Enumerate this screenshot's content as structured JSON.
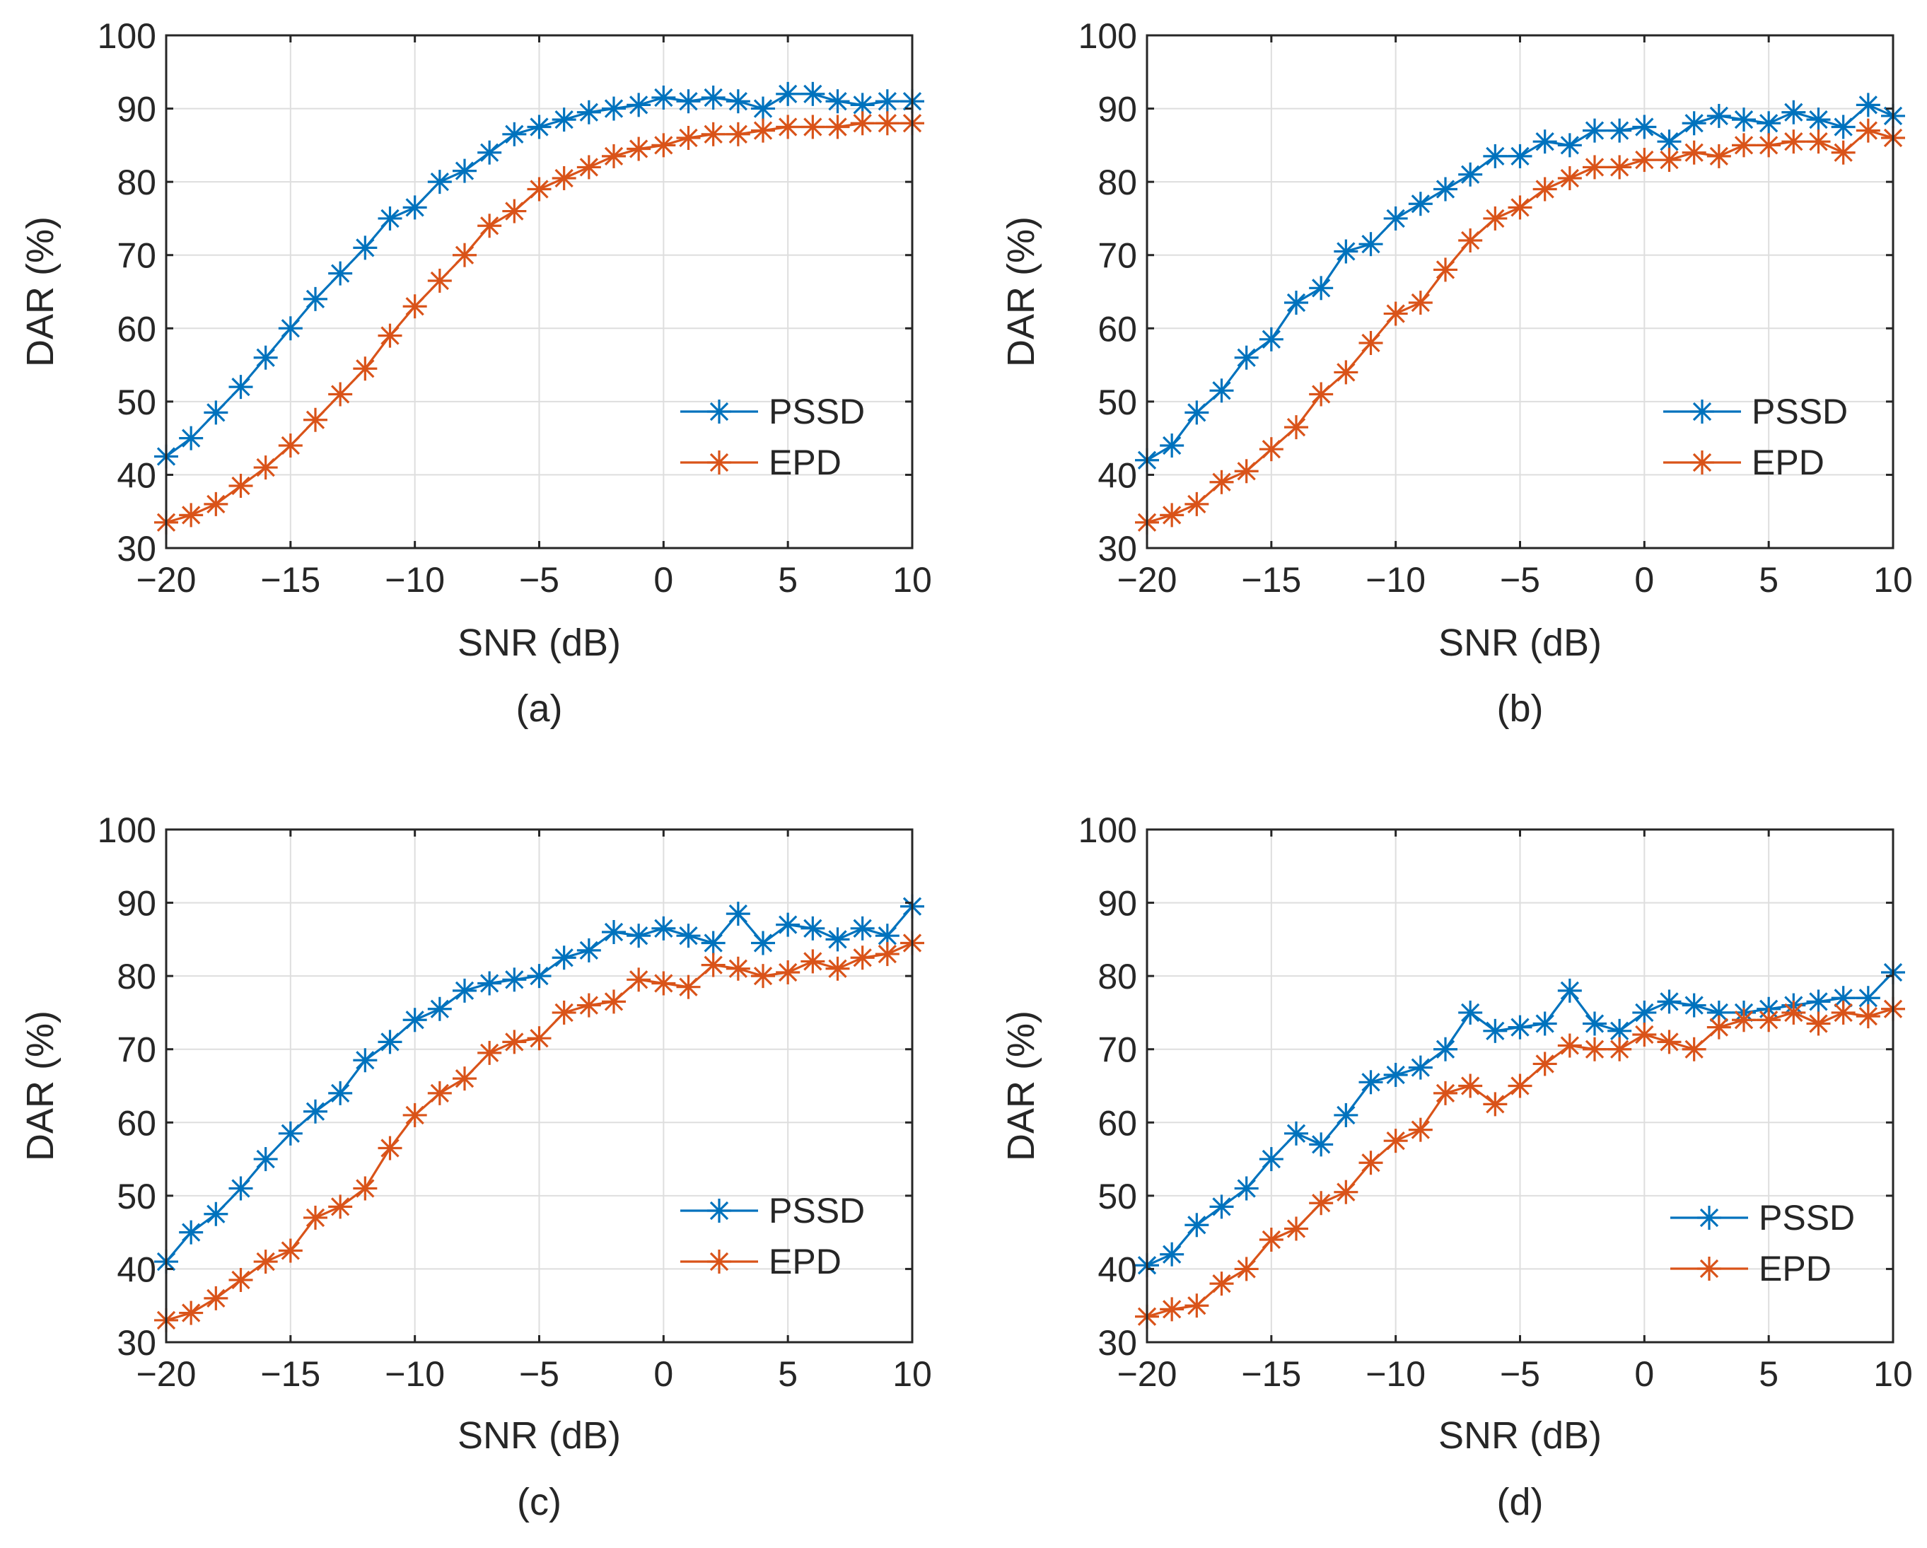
{
  "colors": {
    "PSSD": "#0072BD",
    "EPD": "#D95319",
    "axis": "#262626",
    "grid": "#dedede"
  },
  "chart_data": [
    {
      "type": "line",
      "panel": "a",
      "caption": "(a)",
      "xlabel": "SNR (dB)",
      "ylabel": "DAR (%)",
      "xlim": [
        -20,
        10
      ],
      "ylim": [
        30,
        100
      ],
      "xticks": [
        -20,
        -15,
        -10,
        -5,
        0,
        5,
        10
      ],
      "xtick_labels": [
        "−20",
        "−15",
        "−10",
        "−5",
        "0",
        "5",
        "10"
      ],
      "yticks": [
        30,
        40,
        50,
        60,
        70,
        80,
        90,
        100
      ],
      "ytick_labels": [
        "30",
        "40",
        "50",
        "60",
        "70",
        "80",
        "90",
        "100"
      ],
      "grid": true,
      "legend_position": "bottom-right",
      "x": [
        -20,
        -19,
        -18,
        -17,
        -16,
        -15,
        -14,
        -13,
        -12,
        -11,
        -10,
        -9,
        -8,
        -7,
        -6,
        -5,
        -4,
        -3,
        -2,
        -1,
        0,
        1,
        2,
        3,
        4,
        5,
        6,
        7,
        8,
        9,
        10
      ],
      "series": [
        {
          "name": "PSSD",
          "values": [
            42.5,
            45,
            48.5,
            52,
            56,
            60,
            64,
            67.5,
            71,
            75,
            76.5,
            80,
            81.5,
            84,
            86.5,
            87.5,
            88.5,
            89.5,
            90,
            90.5,
            91.5,
            91,
            91.5,
            91,
            90,
            92,
            92,
            91,
            90.5,
            91,
            91
          ]
        },
        {
          "name": "EPD",
          "values": [
            33.5,
            34.5,
            36,
            38.5,
            41,
            44,
            47.5,
            51,
            54.5,
            59,
            63,
            66.5,
            70,
            74,
            76,
            79,
            80.5,
            82,
            83.5,
            84.5,
            85,
            86,
            86.5,
            86.5,
            87,
            87.5,
            87.5,
            87.5,
            88,
            88,
            88
          ]
        }
      ]
    },
    {
      "type": "line",
      "panel": "b",
      "caption": "(b)",
      "xlabel": "SNR (dB)",
      "ylabel": "DAR (%)",
      "xlim": [
        -20,
        10
      ],
      "ylim": [
        30,
        100
      ],
      "xticks": [
        -20,
        -15,
        -10,
        -5,
        0,
        5,
        10
      ],
      "xtick_labels": [
        "−20",
        "−15",
        "−10",
        "−5",
        "0",
        "5",
        "10"
      ],
      "yticks": [
        30,
        40,
        50,
        60,
        70,
        80,
        90,
        100
      ],
      "ytick_labels": [
        "30",
        "40",
        "50",
        "60",
        "70",
        "80",
        "90",
        "100"
      ],
      "grid": true,
      "legend_position": "bottom-right",
      "x": [
        -20,
        -19,
        -18,
        -17,
        -16,
        -15,
        -14,
        -13,
        -12,
        -11,
        -10,
        -9,
        -8,
        -7,
        -6,
        -5,
        -4,
        -3,
        -2,
        -1,
        0,
        1,
        2,
        3,
        4,
        5,
        6,
        7,
        8,
        9,
        10
      ],
      "series": [
        {
          "name": "PSSD",
          "values": [
            42,
            44,
            48.5,
            51.5,
            56,
            58.5,
            63.5,
            65.5,
            70.5,
            71.5,
            75,
            77,
            79,
            81,
            83.5,
            83.5,
            85.5,
            85,
            87,
            87,
            87.5,
            85.5,
            88,
            89,
            88.5,
            88,
            89.5,
            88.5,
            87.5,
            90.5,
            89
          ]
        },
        {
          "name": "EPD",
          "values": [
            33.5,
            34.5,
            36,
            39,
            40.5,
            43.5,
            46.5,
            51,
            54,
            58,
            62,
            63.5,
            68,
            72,
            75,
            76.5,
            79,
            80.5,
            82,
            82,
            83,
            83,
            84,
            83.5,
            85,
            85,
            85.5,
            85.5,
            84,
            87,
            86
          ]
        }
      ]
    },
    {
      "type": "line",
      "panel": "c",
      "caption": "(c)",
      "xlabel": "SNR (dB)",
      "ylabel": "DAR (%)",
      "xlim": [
        -20,
        10
      ],
      "ylim": [
        30,
        100
      ],
      "xticks": [
        -20,
        -15,
        -10,
        -5,
        0,
        5,
        10
      ],
      "xtick_labels": [
        "−20",
        "−15",
        "−10",
        "−5",
        "0",
        "5",
        "10"
      ],
      "yticks": [
        30,
        40,
        50,
        60,
        70,
        80,
        90,
        100
      ],
      "ytick_labels": [
        "30",
        "40",
        "50",
        "60",
        "70",
        "80",
        "90",
        "100"
      ],
      "grid": true,
      "legend_position": "bottom-right",
      "x": [
        -20,
        -19,
        -18,
        -17,
        -16,
        -15,
        -14,
        -13,
        -12,
        -11,
        -10,
        -9,
        -8,
        -7,
        -6,
        -5,
        -4,
        -3,
        -2,
        -1,
        0,
        1,
        2,
        3,
        4,
        5,
        6,
        7,
        8,
        9,
        10
      ],
      "series": [
        {
          "name": "PSSD",
          "values": [
            41,
            45,
            47.5,
            51,
            55,
            58.5,
            61.5,
            64,
            68.5,
            71,
            74,
            75.5,
            78,
            79,
            79.5,
            80,
            82.5,
            83.5,
            86,
            85.5,
            86.5,
            85.5,
            84.5,
            88.5,
            84.5,
            87,
            86.5,
            85,
            86.5,
            85.5,
            89.5
          ]
        },
        {
          "name": "EPD",
          "values": [
            33,
            34,
            36,
            38.5,
            41,
            42.5,
            47,
            48.5,
            51,
            56.5,
            61,
            64,
            66,
            69.5,
            71,
            71.5,
            75,
            76,
            76.5,
            79.5,
            79,
            78.5,
            81.5,
            81,
            80,
            80.5,
            82,
            81,
            82.5,
            83,
            84.5
          ]
        }
      ]
    },
    {
      "type": "line",
      "panel": "d",
      "caption": "(d)",
      "xlabel": "SNR (dB)",
      "ylabel": "DAR (%)",
      "xlim": [
        -20,
        10
      ],
      "ylim": [
        30,
        100
      ],
      "xticks": [
        -20,
        -15,
        -10,
        -5,
        0,
        5,
        10
      ],
      "xtick_labels": [
        "−20",
        "−15",
        "−10",
        "−5",
        "0",
        "5",
        "10"
      ],
      "yticks": [
        30,
        40,
        50,
        60,
        70,
        80,
        90,
        100
      ],
      "ytick_labels": [
        "30",
        "40",
        "50",
        "60",
        "70",
        "80",
        "90",
        "100"
      ],
      "grid": true,
      "legend_position": "bottom-right",
      "x": [
        -20,
        -19,
        -18,
        -17,
        -16,
        -15,
        -14,
        -13,
        -12,
        -11,
        -10,
        -9,
        -8,
        -7,
        -6,
        -5,
        -4,
        -3,
        -2,
        -1,
        0,
        1,
        2,
        3,
        4,
        5,
        6,
        7,
        8,
        9,
        10
      ],
      "series": [
        {
          "name": "PSSD",
          "values": [
            40.5,
            42,
            46,
            48.5,
            51,
            55,
            58.5,
            57,
            61,
            65.5,
            66.5,
            67.5,
            70,
            75,
            72.5,
            73,
            73.5,
            78,
            73.5,
            72.5,
            75,
            76.5,
            76,
            75,
            75,
            75.5,
            76,
            76.5,
            77,
            77,
            80.5
          ]
        },
        {
          "name": "EPD",
          "values": [
            33.5,
            34.5,
            35,
            38,
            40,
            44,
            45.5,
            49,
            50.5,
            54.5,
            57.5,
            59,
            64,
            65,
            62.5,
            65,
            68,
            70.5,
            70,
            70,
            72,
            71,
            70,
            73,
            74,
            74,
            75,
            73.5,
            75,
            74.5,
            75.5
          ]
        }
      ]
    }
  ]
}
